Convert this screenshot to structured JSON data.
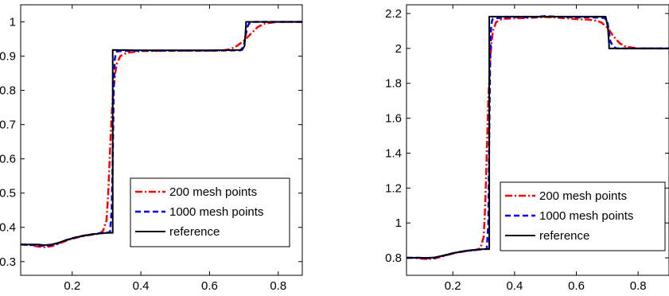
{
  "chart_data": [
    {
      "type": "line",
      "xlim": [
        0.05,
        0.87
      ],
      "ylim": [
        0.26,
        1.05
      ],
      "xticks": [
        {
          "value": 0.2,
          "label": "0.2"
        },
        {
          "value": 0.4,
          "label": "0.4"
        },
        {
          "value": 0.6,
          "label": "0.6"
        },
        {
          "value": 0.8,
          "label": "0.8"
        }
      ],
      "yticks": [
        {
          "value": 0.3,
          "label": "0.3"
        },
        {
          "value": 0.4,
          "label": "0.4"
        },
        {
          "value": 0.5,
          "label": "0.5"
        },
        {
          "value": 0.6,
          "label": "0.6"
        },
        {
          "value": 0.7,
          "label": "0.7"
        },
        {
          "value": 0.8,
          "label": "0.8"
        },
        {
          "value": 0.9,
          "label": "0.9"
        },
        {
          "value": 1,
          "label": "1"
        }
      ],
      "grid": false,
      "legend_position": "bottom-right",
      "series": [
        {
          "name": "200 mesh points",
          "color": "#ff0000",
          "style": "dash-dot",
          "x": [
            0.05,
            0.08,
            0.1,
            0.12,
            0.14,
            0.16,
            0.18,
            0.2,
            0.22,
            0.24,
            0.26,
            0.28,
            0.29,
            0.3,
            0.305,
            0.31,
            0.315,
            0.32,
            0.325,
            0.33,
            0.34,
            0.36,
            0.4,
            0.5,
            0.6,
            0.64,
            0.66,
            0.68,
            0.7,
            0.72,
            0.74,
            0.76,
            0.8,
            0.87
          ],
          "y": [
            0.35,
            0.348,
            0.344,
            0.342,
            0.345,
            0.352,
            0.36,
            0.367,
            0.372,
            0.376,
            0.379,
            0.382,
            0.39,
            0.42,
            0.5,
            0.62,
            0.73,
            0.8,
            0.85,
            0.878,
            0.9,
            0.91,
            0.915,
            0.916,
            0.916,
            0.917,
            0.92,
            0.93,
            0.945,
            0.965,
            0.985,
            0.995,
            1.0,
            1.0
          ]
        },
        {
          "name": "1000 mesh points",
          "color": "#0000ff",
          "style": "dashed",
          "x": [
            0.05,
            0.08,
            0.1,
            0.12,
            0.14,
            0.16,
            0.18,
            0.2,
            0.22,
            0.24,
            0.26,
            0.28,
            0.3,
            0.31,
            0.315,
            0.318,
            0.321,
            0.324,
            0.327,
            0.33,
            0.34,
            0.4,
            0.5,
            0.6,
            0.69,
            0.7,
            0.705,
            0.71,
            0.715,
            0.72,
            0.73,
            0.8,
            0.87
          ],
          "y": [
            0.35,
            0.349,
            0.347,
            0.346,
            0.348,
            0.354,
            0.362,
            0.368,
            0.373,
            0.377,
            0.38,
            0.383,
            0.384,
            0.386,
            0.45,
            0.6,
            0.8,
            0.89,
            0.908,
            0.913,
            0.915,
            0.916,
            0.916,
            0.916,
            0.917,
            0.93,
            0.96,
            0.985,
            0.995,
            0.998,
            1.0,
            1.0,
            1.0
          ]
        },
        {
          "name": "reference",
          "color": "#000000",
          "style": "solid",
          "x": [
            0.05,
            0.1,
            0.12,
            0.14,
            0.16,
            0.18,
            0.2,
            0.22,
            0.24,
            0.26,
            0.28,
            0.3,
            0.318,
            0.318,
            0.4,
            0.5,
            0.6,
            0.695,
            0.702,
            0.706,
            0.706,
            0.87
          ],
          "y": [
            0.35,
            0.35,
            0.348,
            0.35,
            0.355,
            0.362,
            0.368,
            0.373,
            0.377,
            0.38,
            0.382,
            0.384,
            0.384,
            0.918,
            0.917,
            0.917,
            0.917,
            0.918,
            0.93,
            0.99,
            1.0,
            1.0
          ]
        }
      ]
    },
    {
      "type": "line",
      "xlim": [
        0.05,
        0.9
      ],
      "ylim": [
        0.7,
        2.25
      ],
      "xticks": [
        {
          "value": 0.2,
          "label": "0.2"
        },
        {
          "value": 0.4,
          "label": "0.4"
        },
        {
          "value": 0.6,
          "label": "0.6"
        },
        {
          "value": 0.8,
          "label": "0.8"
        }
      ],
      "yticks": [
        {
          "value": 0.8,
          "label": "0.8"
        },
        {
          "value": 1.0,
          "label": "1"
        },
        {
          "value": 1.2,
          "label": "1.2"
        },
        {
          "value": 1.4,
          "label": "1.4"
        },
        {
          "value": 1.6,
          "label": "1.6"
        },
        {
          "value": 1.8,
          "label": "1.8"
        },
        {
          "value": 2.0,
          "label": "2"
        },
        {
          "value": 2.2,
          "label": "2.2"
        }
      ],
      "grid": false,
      "legend_position": "bottom-right",
      "series": [
        {
          "name": "200 mesh points",
          "color": "#ff0000",
          "style": "dash-dot",
          "x": [
            0.05,
            0.08,
            0.1,
            0.12,
            0.14,
            0.16,
            0.18,
            0.2,
            0.22,
            0.24,
            0.26,
            0.28,
            0.29,
            0.3,
            0.305,
            0.31,
            0.315,
            0.32,
            0.325,
            0.33,
            0.34,
            0.36,
            0.4,
            0.45,
            0.5,
            0.55,
            0.6,
            0.64,
            0.66,
            0.68,
            0.7,
            0.72,
            0.74,
            0.76,
            0.8,
            0.9
          ],
          "y": [
            0.8,
            0.8,
            0.795,
            0.793,
            0.797,
            0.805,
            0.815,
            0.825,
            0.832,
            0.838,
            0.842,
            0.846,
            0.86,
            0.92,
            1.1,
            1.4,
            1.7,
            1.9,
            2.03,
            2.1,
            2.15,
            2.17,
            2.172,
            2.175,
            2.18,
            2.175,
            2.168,
            2.165,
            2.16,
            2.15,
            2.12,
            2.07,
            2.03,
            2.01,
            2.0,
            2.0
          ]
        },
        {
          "name": "1000 mesh points",
          "color": "#0000ff",
          "style": "dashed",
          "x": [
            0.05,
            0.1,
            0.12,
            0.14,
            0.16,
            0.18,
            0.2,
            0.22,
            0.24,
            0.26,
            0.28,
            0.3,
            0.31,
            0.315,
            0.318,
            0.321,
            0.324,
            0.327,
            0.33,
            0.35,
            0.4,
            0.45,
            0.5,
            0.55,
            0.6,
            0.65,
            0.69,
            0.7,
            0.705,
            0.71,
            0.72,
            0.73,
            0.8,
            0.9
          ],
          "y": [
            0.8,
            0.8,
            0.798,
            0.8,
            0.808,
            0.817,
            0.826,
            0.833,
            0.839,
            0.843,
            0.847,
            0.849,
            0.852,
            1.0,
            1.5,
            1.95,
            2.12,
            2.16,
            2.17,
            2.175,
            2.18,
            2.178,
            2.185,
            2.18,
            2.178,
            2.178,
            2.175,
            2.16,
            2.1,
            2.04,
            2.01,
            2.0,
            2.0,
            2.0
          ]
        },
        {
          "name": "reference",
          "color": "#000000",
          "style": "solid",
          "x": [
            0.05,
            0.1,
            0.12,
            0.14,
            0.16,
            0.18,
            0.2,
            0.22,
            0.24,
            0.26,
            0.28,
            0.3,
            0.318,
            0.318,
            0.4,
            0.5,
            0.6,
            0.695,
            0.702,
            0.706,
            0.706,
            0.9
          ],
          "y": [
            0.8,
            0.8,
            0.8,
            0.802,
            0.81,
            0.818,
            0.827,
            0.834,
            0.84,
            0.844,
            0.848,
            0.85,
            0.85,
            2.182,
            2.182,
            2.182,
            2.182,
            2.182,
            2.12,
            2.02,
            2.0,
            2.0
          ]
        }
      ]
    }
  ]
}
